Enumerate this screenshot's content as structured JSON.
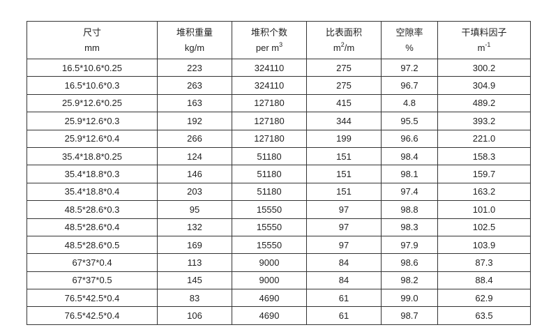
{
  "table": {
    "headers": [
      {
        "label": "尺寸",
        "unit": "mm",
        "sup": ""
      },
      {
        "label": "堆积重量",
        "unit": "kg/m",
        "sup": ""
      },
      {
        "label": "堆积个数",
        "unit": "per m",
        "sup": "3"
      },
      {
        "label": "比表面积",
        "unit": "m",
        "sup": "2",
        "unit_suffix": "/m"
      },
      {
        "label": "空隙率",
        "unit": "%",
        "sup": ""
      },
      {
        "label": "干填料因子",
        "unit": "m",
        "sup": "-1"
      }
    ],
    "rows": [
      [
        "16.5*10.6*0.25",
        "223",
        "324110",
        "275",
        "97.2",
        "300.2"
      ],
      [
        "16.5*10.6*0.3",
        "263",
        "324110",
        "275",
        "96.7",
        "304.9"
      ],
      [
        "25.9*12.6*0.25",
        "163",
        "127180",
        "415",
        "4.8",
        "489.2"
      ],
      [
        "25.9*12.6*0.3",
        "192",
        "127180",
        "344",
        "95.5",
        "393.2"
      ],
      [
        "25.9*12.6*0.4",
        "266",
        "127180",
        "199",
        "96.6",
        "221.0"
      ],
      [
        "35.4*18.8*0.25",
        "124",
        "51180",
        "151",
        "98.4",
        "158.3"
      ],
      [
        "35.4*18.8*0.3",
        "146",
        "51180",
        "151",
        "98.1",
        "159.7"
      ],
      [
        "35.4*18.8*0.4",
        "203",
        "51180",
        "151",
        "97.4",
        "163.2"
      ],
      [
        "48.5*28.6*0.3",
        "95",
        "15550",
        "97",
        "98.8",
        "101.0"
      ],
      [
        "48.5*28.6*0.4",
        "132",
        "15550",
        "97",
        "98.3",
        "102.5"
      ],
      [
        "48.5*28.6*0.5",
        "169",
        "15550",
        "97",
        "97.9",
        "103.9"
      ],
      [
        "67*37*0.4",
        "113",
        "9000",
        "84",
        "98.6",
        "87.3"
      ],
      [
        "67*37*0.5",
        "145",
        "9000",
        "84",
        "98.2",
        "88.4"
      ],
      [
        "76.5*42.5*0.4",
        "83",
        "4690",
        "61",
        "99.0",
        "62.9"
      ],
      [
        "76.5*42.5*0.4",
        "106",
        "4690",
        "61",
        "98.7",
        "63.5"
      ]
    ]
  }
}
